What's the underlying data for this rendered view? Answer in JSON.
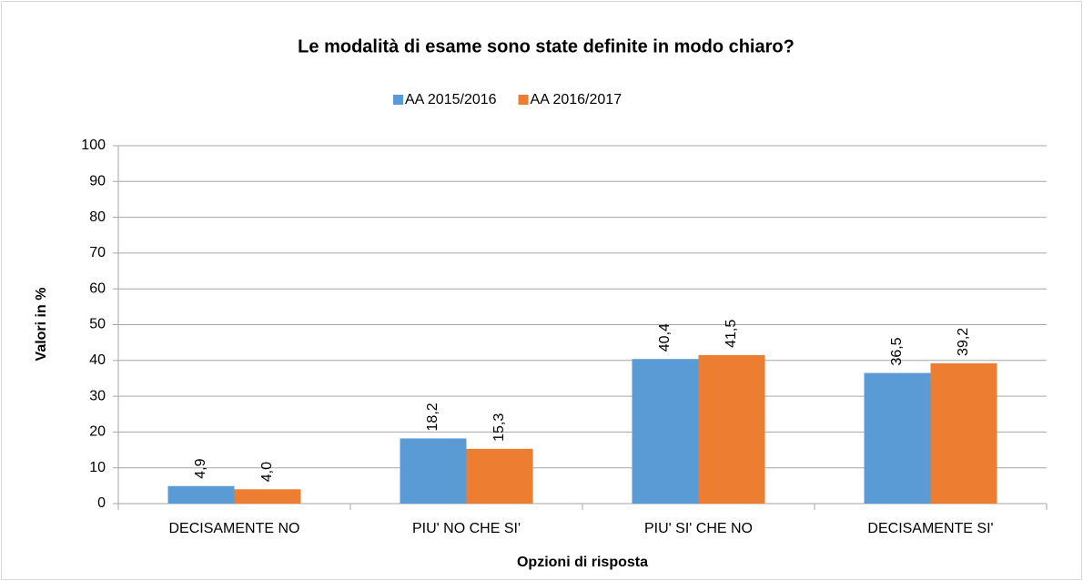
{
  "chart_data": {
    "type": "bar",
    "title": "Le modalità di esame sono state definite in modo chiaro?",
    "categories": [
      "DECISAMENTE NO",
      "PIU' NO CHE SI'",
      "PIU' SI' CHE NO",
      "DECISAMENTE SI'"
    ],
    "series": [
      {
        "name": "AA 2015/2016",
        "color": "#5b9bd5",
        "values": [
          4.9,
          18.2,
          40.4,
          36.5
        ],
        "value_labels": [
          "4,9",
          "18,2",
          "40,4",
          "36,5"
        ]
      },
      {
        "name": "AA 2016/2017",
        "color": "#ed7d31",
        "values": [
          4.0,
          15.3,
          41.5,
          39.2
        ],
        "value_labels": [
          "4,0",
          "15,3",
          "41,5",
          "39,2"
        ]
      }
    ],
    "ylim": [
      0,
      100
    ],
    "yticks": [
      0,
      10,
      20,
      30,
      40,
      50,
      60,
      70,
      80,
      90,
      100
    ],
    "ylabel": "Valori in %",
    "xlabel": "Opzioni di risposta",
    "grid": true,
    "legend": "top"
  }
}
